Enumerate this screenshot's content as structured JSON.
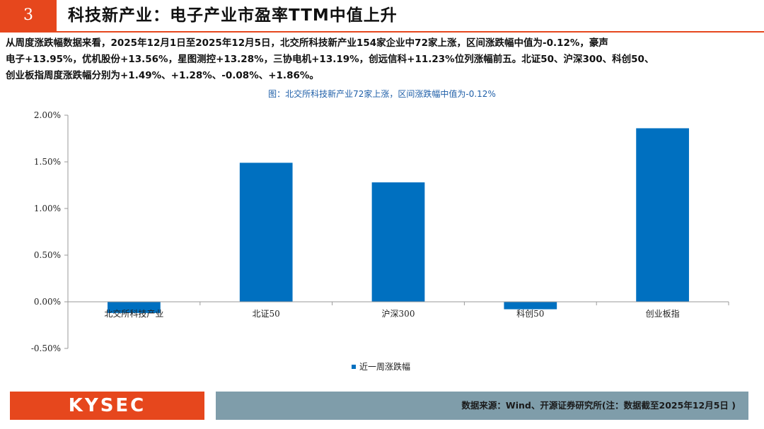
{
  "header": {
    "section_number": "3",
    "title": "科技新产业：电子产业市盈率TTM中值上升"
  },
  "intro": {
    "line1": "从周度涨跌幅数据来看，2025年12月1日至2025年12月5日，北交所科技新产业154家企业中72家上涨，区间涨跌幅中值为-0.12%，豪声",
    "line2": "电子+13.95%，优机股份+13.56%，星图测控+13.28%，三协电机+13.19%，创远信科+11.23%位列涨幅前五。北证50、沪深300、科创50、",
    "line3": "创业板指周度涨跌幅分别为+1.49%、+1.28%、-0.08%、+1.86%。"
  },
  "chart_data": {
    "type": "bar",
    "title": "图：北交所科技新产业72家上涨，区间涨跌幅中值为-0.12%",
    "categories": [
      "北交所科技产业",
      "北证50",
      "沪深300",
      "科创50",
      "创业板指"
    ],
    "series": [
      {
        "name": "近一周涨跌幅",
        "values": [
          -0.12,
          1.49,
          1.28,
          -0.08,
          1.86
        ],
        "color": "#0070C0"
      }
    ],
    "ylim": [
      -0.5,
      2.0
    ],
    "yticks": [
      -0.5,
      0.0,
      0.5,
      1.0,
      1.5,
      2.0
    ],
    "ytick_labels": [
      "-0.50%",
      "0.00%",
      "0.50%",
      "1.00%",
      "1.50%",
      "2.00%"
    ],
    "grid": false,
    "legend_position": "bottom-center"
  },
  "footer": {
    "logo_text": "KYSEC",
    "source": "数据来源：Wind、开源证券研究所(注：数据截至2025年12月5日 )"
  },
  "colors": {
    "accent": "#E6471D",
    "footer_bar": "#7F9DAA",
    "bar": "#0070C0",
    "chart_title": "#1F5FA8"
  }
}
